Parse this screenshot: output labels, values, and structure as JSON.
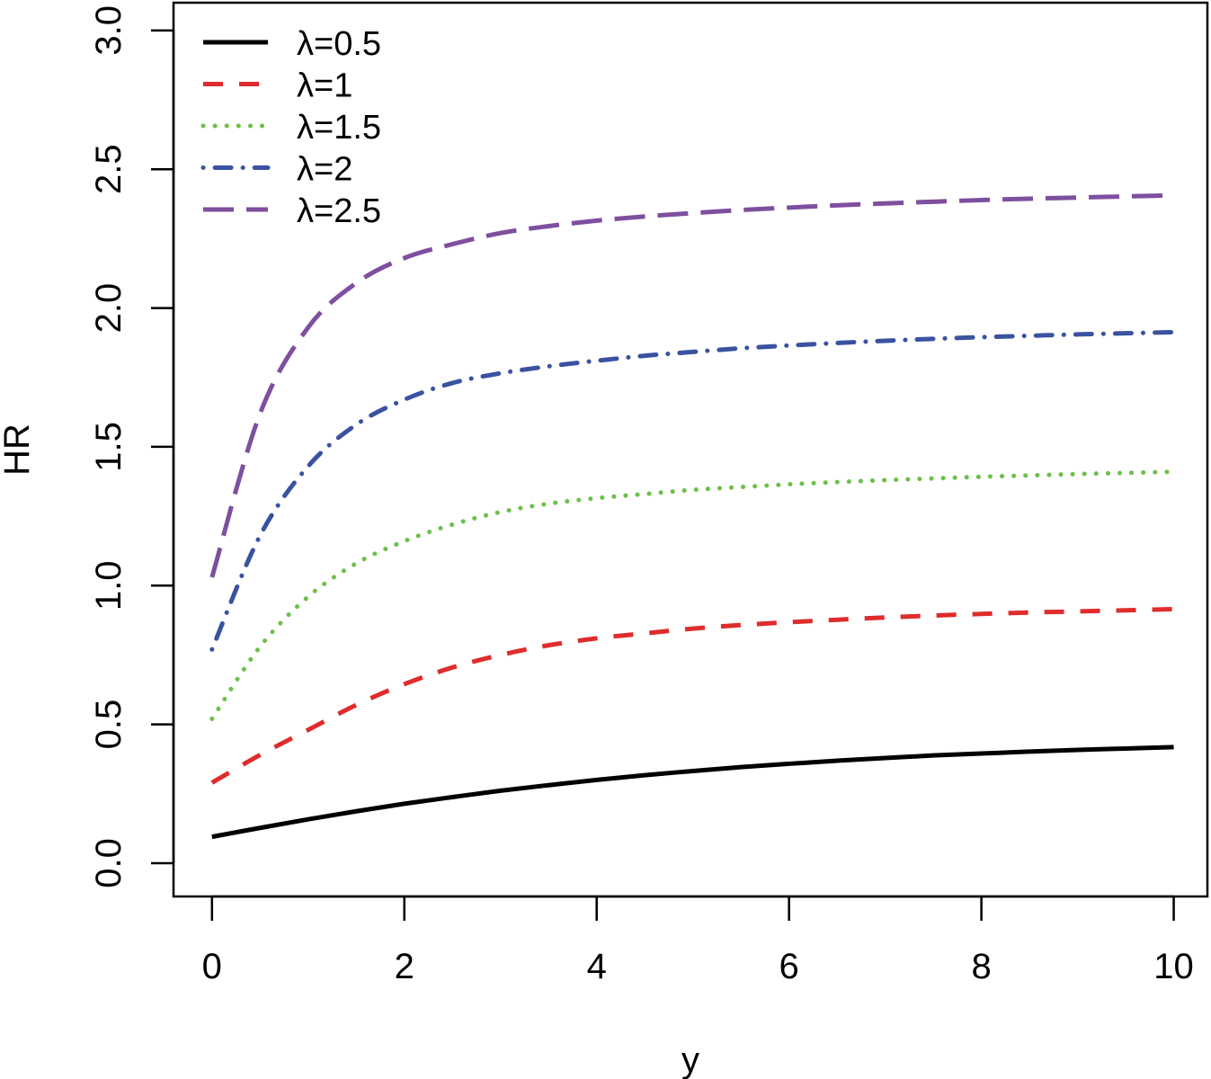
{
  "chart_data": {
    "type": "line",
    "xlabel": "y",
    "ylabel": "HR",
    "xlim": [
      -0.4,
      10.35
    ],
    "ylim": [
      -0.12,
      3.1
    ],
    "x_ticks": [
      0,
      2,
      4,
      6,
      8,
      10
    ],
    "x_tick_labels": [
      "0",
      "2",
      "4",
      "6",
      "8",
      "10"
    ],
    "y_ticks": [
      0.0,
      0.5,
      1.0,
      1.5,
      2.0,
      2.5,
      3.0
    ],
    "y_tick_labels": [
      "0.0",
      "0.5",
      "1.0",
      "1.5",
      "2.0",
      "2.5",
      "3.0"
    ],
    "grid": false,
    "legend_position": "top-left",
    "x": [
      0,
      0.5,
      1,
      1.5,
      2,
      2.5,
      3,
      3.5,
      4,
      4.5,
      5,
      5.5,
      6,
      6.5,
      7,
      7.5,
      8,
      8.5,
      9,
      9.5,
      10
    ],
    "series": [
      {
        "name": "λ=0.5",
        "color": "#000000",
        "line_style": "solid",
        "values": [
          0.095,
          0.127,
          0.158,
          0.187,
          0.214,
          0.238,
          0.261,
          0.281,
          0.3,
          0.317,
          0.332,
          0.346,
          0.358,
          0.369,
          0.379,
          0.388,
          0.395,
          0.402,
          0.408,
          0.413,
          0.418
        ]
      },
      {
        "name": "λ=1",
        "color": "#df2c2c",
        "line_style": "dashed",
        "values": [
          0.29,
          0.39,
          0.48,
          0.57,
          0.645,
          0.705,
          0.75,
          0.785,
          0.81,
          0.828,
          0.845,
          0.858,
          0.868,
          0.877,
          0.885,
          0.892,
          0.898,
          0.903,
          0.907,
          0.911,
          0.915
        ]
      },
      {
        "name": "λ=1.5",
        "color": "#6dbf4a",
        "line_style": "dotted",
        "values": [
          0.52,
          0.78,
          0.96,
          1.08,
          1.16,
          1.22,
          1.265,
          1.295,
          1.315,
          1.33,
          1.345,
          1.355,
          1.365,
          1.373,
          1.38,
          1.386,
          1.392,
          1.397,
          1.402,
          1.406,
          1.41
        ]
      },
      {
        "name": "λ=2",
        "color": "#3a52a0",
        "line_style": "dotdash",
        "values": [
          0.77,
          1.18,
          1.43,
          1.58,
          1.67,
          1.73,
          1.765,
          1.79,
          1.81,
          1.828,
          1.842,
          1.855,
          1.865,
          1.874,
          1.882,
          1.889,
          1.895,
          1.9,
          1.905,
          1.909,
          1.913
        ]
      },
      {
        "name": "λ=2.5",
        "color": "#7f4f9f",
        "line_style": "longdash",
        "values": [
          1.03,
          1.62,
          1.93,
          2.09,
          2.18,
          2.23,
          2.27,
          2.295,
          2.315,
          2.33,
          2.342,
          2.353,
          2.362,
          2.37,
          2.377,
          2.383,
          2.389,
          2.394,
          2.398,
          2.402,
          2.406
        ]
      }
    ]
  }
}
